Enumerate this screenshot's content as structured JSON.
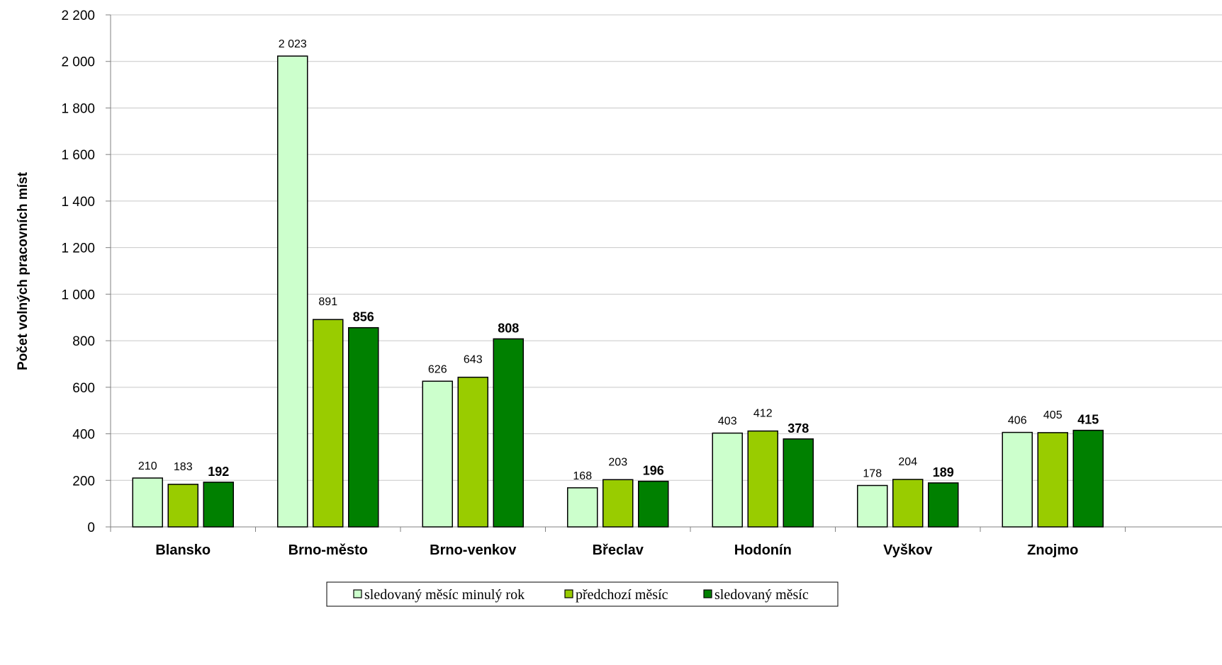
{
  "chart_data": {
    "type": "bar",
    "ylabel": "Počet volných pracovních míst",
    "xlabel": "",
    "ylim": [
      0,
      2200
    ],
    "yticks": [
      0,
      200,
      400,
      600,
      800,
      1000,
      1200,
      1400,
      1600,
      1800,
      2000,
      2200
    ],
    "ytick_labels": [
      "0",
      "200",
      "400",
      "600",
      "800",
      "1 000",
      "1 200",
      "1 400",
      "1 600",
      "1 800",
      "2 000",
      "2 200"
    ],
    "grid": true,
    "legend_position": "bottom",
    "categories": [
      "Blansko",
      "Brno-město",
      "Brno-venkov",
      "Břeclav",
      "Hodonín",
      "Vyškov",
      "Znojmo"
    ],
    "series": [
      {
        "name": "sledovaný měsíc minulý rok",
        "color": "#ccffcc",
        "values": [
          210,
          2023,
          626,
          168,
          403,
          178,
          406
        ],
        "labels": [
          "210",
          "2 023",
          "626",
          "168",
          "403",
          "178",
          "406"
        ],
        "label_bold": false
      },
      {
        "name": "předchozí měsíc",
        "color": "#99cc00",
        "values": [
          183,
          891,
          643,
          203,
          412,
          204,
          405
        ],
        "labels": [
          "183",
          "891",
          "643",
          "203",
          "412",
          "204",
          "405"
        ],
        "label_bold": false
      },
      {
        "name": "sledovaný měsíc",
        "color": "#008000",
        "values": [
          192,
          856,
          808,
          196,
          378,
          189,
          415
        ],
        "labels": [
          "192",
          "856",
          "808",
          "196",
          "378",
          "189",
          "415"
        ],
        "label_bold": true
      }
    ]
  }
}
